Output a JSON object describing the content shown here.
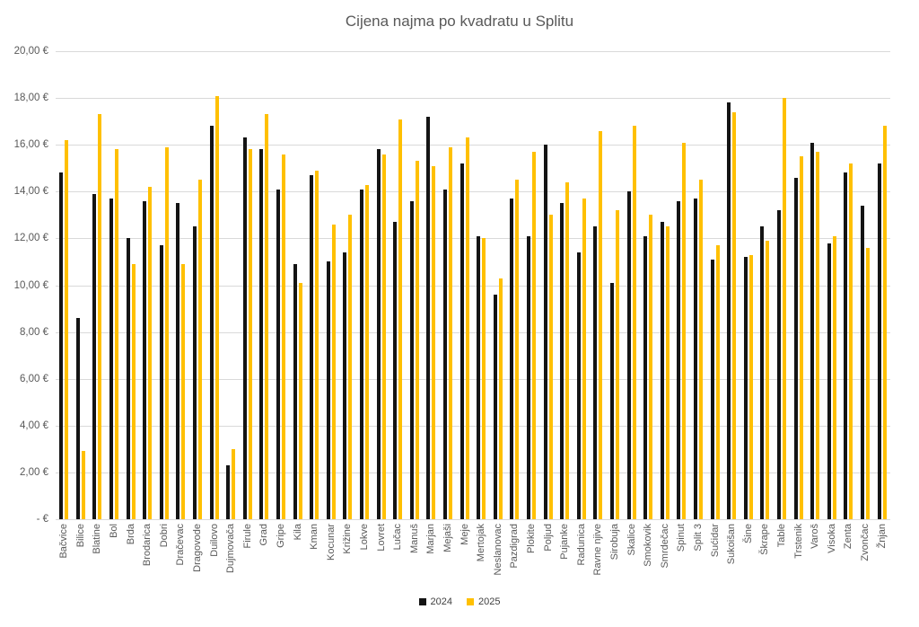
{
  "title": "Cijena najma po kvadratu u Splitu",
  "chart_data": {
    "type": "bar",
    "title": "Cijena najma po kvadratu u Splitu",
    "xlabel": "",
    "ylabel": "",
    "ylim": [
      0,
      20
    ],
    "grid": true,
    "legend_position": "bottom",
    "background_color": "#ffffff",
    "gridline_color": "#d9d9d9",
    "ytick_values": [
      20,
      18,
      16,
      14,
      12,
      10,
      8,
      6,
      4,
      2,
      0
    ],
    "ytick_labels": [
      "20,00 €",
      "18,00 €",
      "16,00 €",
      "14,00 €",
      "12,00 €",
      "10,00 €",
      "8,00 €",
      "6,00 €",
      "4,00 €",
      "2,00 €",
      "- €"
    ],
    "categories": [
      "Bačvice",
      "Bilice",
      "Blatine",
      "Bol",
      "Brda",
      "Brodarica",
      "Dobri",
      "Dračevac",
      "Dragovode",
      "Duilovo",
      "Dujmovača",
      "Firule",
      "Grad",
      "Gripe",
      "Kila",
      "Kman",
      "Kocunar",
      "Križine",
      "Lokve",
      "Lovret",
      "Lučac",
      "Manuš",
      "Marjan",
      "Mejaši",
      "Meje",
      "Mertojak",
      "Neslanovac",
      "Pazdigrad",
      "Plokite",
      "Poljud",
      "Pujanke",
      "Radunica",
      "Ravne njive",
      "Sirobuja",
      "Skalice",
      "Smokovik",
      "Smrdečac",
      "Spinut",
      "Split 3",
      "Sućidar",
      "Sukoišan",
      "Šine",
      "Škrape",
      "Table",
      "Trstenik",
      "Varoš",
      "Visoka",
      "Zenta",
      "Zvončac",
      "Žnjan"
    ],
    "series": [
      {
        "name": "2024",
        "color": "#141414",
        "values": [
          14.8,
          8.6,
          13.9,
          13.7,
          12.0,
          13.6,
          11.7,
          13.5,
          12.5,
          16.8,
          2.3,
          16.3,
          15.8,
          14.1,
          10.9,
          14.7,
          11.0,
          11.4,
          14.1,
          15.8,
          12.7,
          13.6,
          17.2,
          14.1,
          15.2,
          12.1,
          9.6,
          13.7,
          12.1,
          16.0,
          13.5,
          11.4,
          12.5,
          10.1,
          14.0,
          12.1,
          12.7,
          13.6,
          13.7,
          11.1,
          17.8,
          11.2,
          12.5,
          13.2,
          14.6,
          16.1,
          11.8,
          14.8,
          13.4,
          15.2
        ]
      },
      {
        "name": "2025",
        "color": "#FFC000",
        "values": [
          16.2,
          2.9,
          17.3,
          15.8,
          10.9,
          14.2,
          15.9,
          10.9,
          14.5,
          18.1,
          3.0,
          15.8,
          17.3,
          15.6,
          10.1,
          14.9,
          12.6,
          13.0,
          14.3,
          15.6,
          17.1,
          15.3,
          15.1,
          15.9,
          16.3,
          12.0,
          10.3,
          14.5,
          15.7,
          13.0,
          14.4,
          13.7,
          16.6,
          13.2,
          16.8,
          13.0,
          12.5,
          16.1,
          14.5,
          11.7,
          17.4,
          11.3,
          11.9,
          18.0,
          15.5,
          15.7,
          12.1,
          15.2,
          11.6,
          16.8
        ]
      }
    ]
  }
}
